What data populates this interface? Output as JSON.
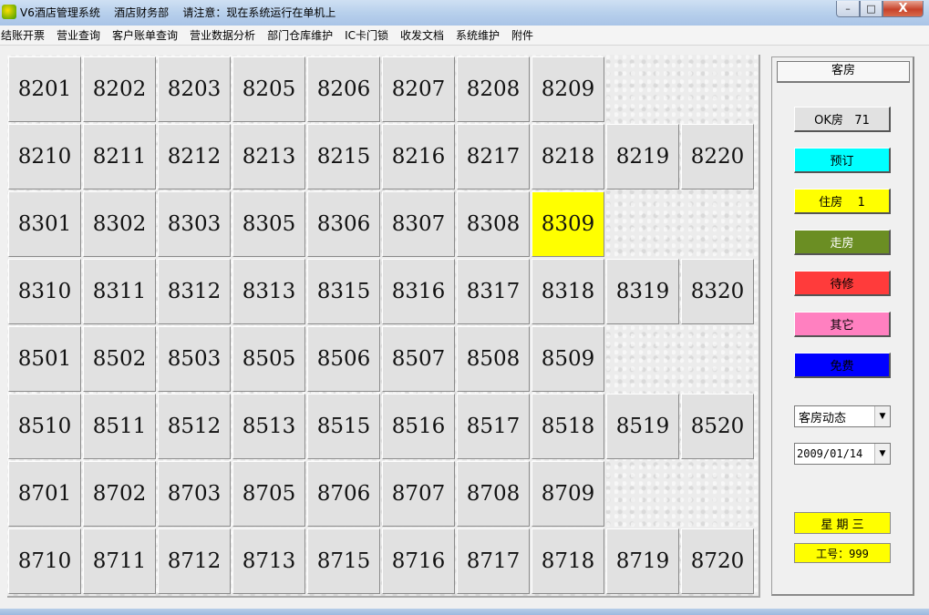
{
  "window": {
    "title": "V6酒店管理系统    酒店财务部    请注意：现在系统运行在单机上",
    "min_label": "–",
    "max_label": "□",
    "close_label": "X"
  },
  "menu": [
    "结账开票",
    "营业查询",
    "客户账单查询",
    "营业数据分析",
    "部门仓库维护",
    "IC卡门锁",
    "收发文档",
    "系统维护",
    "附件"
  ],
  "rooms": [
    [
      "8201",
      "8202",
      "8203",
      "8205",
      "8206",
      "8207",
      "8208",
      "8209"
    ],
    [
      "8210",
      "8211",
      "8212",
      "8213",
      "8215",
      "8216",
      "8217",
      "8218",
      "8219",
      "8220"
    ],
    [
      "8301",
      "8302",
      "8303",
      "8305",
      "8306",
      "8307",
      "8308",
      "8309"
    ],
    [
      "8310",
      "8311",
      "8312",
      "8313",
      "8315",
      "8316",
      "8317",
      "8318",
      "8319",
      "8320"
    ],
    [
      "8501",
      "8502",
      "8503",
      "8505",
      "8506",
      "8507",
      "8508",
      "8509"
    ],
    [
      "8510",
      "8511",
      "8512",
      "8513",
      "8515",
      "8516",
      "8517",
      "8518",
      "8519",
      "8520"
    ],
    [
      "8701",
      "8702",
      "8703",
      "8705",
      "8706",
      "8707",
      "8708",
      "8709"
    ],
    [
      "8710",
      "8711",
      "8712",
      "8713",
      "8715",
      "8716",
      "8717",
      "8718",
      "8719",
      "8720"
    ]
  ],
  "occupied_rooms": [
    "8309"
  ],
  "panel": {
    "tab": "客房",
    "legend": [
      {
        "label": "OK房   71",
        "color": "#e1e1e1",
        "text_color": "#000000"
      },
      {
        "label": "预订",
        "color": "#00ffff",
        "text_color": "#000000"
      },
      {
        "label": "住房    1",
        "color": "#ffff00",
        "text_color": "#000000"
      },
      {
        "label": "走房",
        "color": "#6b8e23",
        "text_color": "#ffffff"
      },
      {
        "label": "待修",
        "color": "#ff3b3b",
        "text_color": "#000000"
      },
      {
        "label": "其它",
        "color": "#ff80c0",
        "text_color": "#000000"
      },
      {
        "label": "免费",
        "color": "#0000ff",
        "text_color": "#000000"
      }
    ],
    "view_select": "客房动态",
    "date_select": "2009/01/14",
    "weekday": "星 期 三",
    "employee": "工号：999"
  }
}
